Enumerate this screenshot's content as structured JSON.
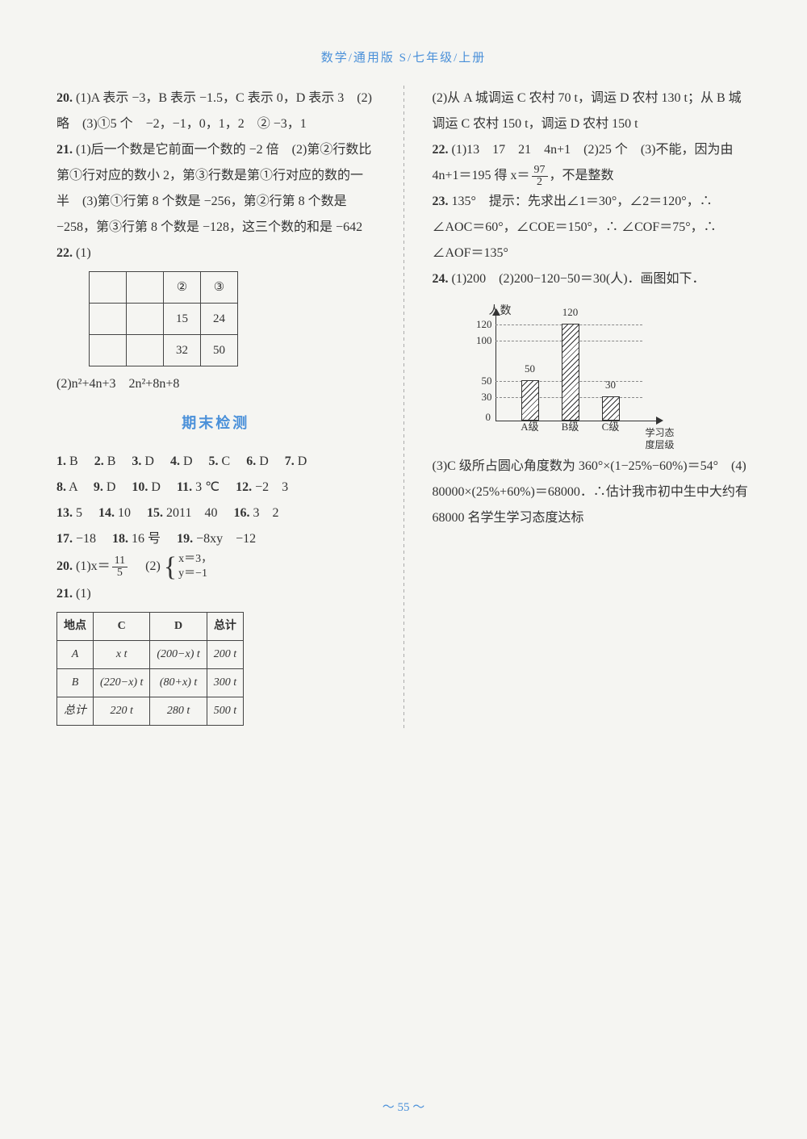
{
  "header": "数学/通用版 S/七年级/上册",
  "footer": "～ 55 ～",
  "left": {
    "q20": {
      "num": "20.",
      "text": "(1)A 表示 −3，B 表示 −1.5，C 表示 0，D 表示 3　(2)略　(3)①5 个　−2，−1，0，1，2　② −3，1"
    },
    "q21": {
      "num": "21.",
      "text": "(1)后一个数是它前面一个数的 −2 倍　(2)第②行数比第①行对应的数小 2，第③行数是第①行对应的数的一半　(3)第①行第 8 个数是 −256，第②行第 8 个数是 −258，第③行第 8 个数是 −128，这三个数的和是 −642"
    },
    "q22": {
      "num": "22.",
      "prefix": "(1)",
      "table": [
        [
          "",
          "",
          "②",
          "③"
        ],
        [
          "",
          "",
          "15",
          "24"
        ],
        [
          "",
          "",
          "32",
          "50"
        ]
      ],
      "part2": "(2)n²+4n+3　2n²+8n+8"
    },
    "section_title": "期末检测",
    "mc": [
      {
        "n": "1.",
        "a": "B"
      },
      {
        "n": "2.",
        "a": "B"
      },
      {
        "n": "3.",
        "a": "D"
      },
      {
        "n": "4.",
        "a": "D"
      },
      {
        "n": "5.",
        "a": "C"
      },
      {
        "n": "6.",
        "a": "D"
      },
      {
        "n": "7.",
        "a": "D"
      },
      {
        "n": "8.",
        "a": "A"
      },
      {
        "n": "9.",
        "a": "D"
      },
      {
        "n": "10.",
        "a": "D"
      }
    ],
    "q11": {
      "n": "11.",
      "a": "3 ℃"
    },
    "q12": {
      "n": "12.",
      "a": "−2　3"
    },
    "q13": {
      "n": "13.",
      "a": "5"
    },
    "q14": {
      "n": "14.",
      "a": "10"
    },
    "q15": {
      "n": "15.",
      "a": "2011　40"
    },
    "q16": {
      "n": "16.",
      "a": "3　2"
    },
    "q17": {
      "n": "17.",
      "a": "−18"
    },
    "q18": {
      "n": "18.",
      "a": "16 号"
    },
    "q19": {
      "n": "19.",
      "a": "−8xy　−12"
    },
    "q20b": {
      "n": "20.",
      "p1_label": "(1)x＝",
      "p1_num": "11",
      "p1_den": "5",
      "p2_label": "(2)",
      "sys_top": "x＝3，",
      "sys_bot": "y＝−1"
    },
    "q21b": {
      "n": "21.",
      "prefix": "(1)",
      "table_header": [
        "地点",
        "C",
        "D",
        "总计"
      ],
      "table_rows": [
        [
          "A",
          "x t",
          "(200−x) t",
          "200 t"
        ],
        [
          "B",
          "(220−x) t",
          "(80+x) t",
          "300 t"
        ],
        [
          "总计",
          "220 t",
          "280 t",
          "500 t"
        ]
      ]
    }
  },
  "right": {
    "q21_cont": "(2)从 A 城调运 C 农村 70 t，调运 D 农村 130 t；从 B 城调运 C 农村 150 t，调运 D 农村 150 t",
    "q22": {
      "num": "22.",
      "p1": "(1)13　17　21　4n+1　(2)25 个　(3)不能，因为由 4n+1＝195 得 x＝",
      "frac_num": "97",
      "frac_den": "2",
      "p2": "，不是整数"
    },
    "q23": {
      "num": "23.",
      "text": "135°　提示：先求出∠1＝30°，∠2＝120°，∴ ∠AOC＝60°，∠COE＝150°，∴ ∠COF＝75°，∴ ∠AOF＝135°"
    },
    "q24": {
      "num": "24.",
      "p1": "(1)200　(2)200−120−50＝30(人)．画图如下．"
    },
    "chart": {
      "title": "人数",
      "y_ticks": [
        {
          "label": "30",
          "ratio": 0.25
        },
        {
          "label": "50",
          "ratio": 0.4167
        },
        {
          "label": "100",
          "ratio": 0.8333
        },
        {
          "label": "120",
          "ratio": 1.0
        }
      ],
      "bars": [
        {
          "label": "A级",
          "value": "50",
          "ratio": 0.4167,
          "x": 80
        },
        {
          "label": "B级",
          "value": "120",
          "ratio": 1.0,
          "x": 130
        },
        {
          "label": "C级",
          "value": "30",
          "ratio": 0.25,
          "x": 180
        }
      ],
      "x_caption_line1": "学习态",
      "x_caption_line2": "度层级",
      "zero": "0",
      "colors": {
        "axis": "#333",
        "dash": "#888"
      }
    },
    "q24_p3": "(3)C 级所占圆心角度数为 360°×(1−25%−60%)＝54°　(4) 80000×(25%+60%)＝68000．∴估计我市初中生中大约有 68000 名学生学习态度达标"
  }
}
